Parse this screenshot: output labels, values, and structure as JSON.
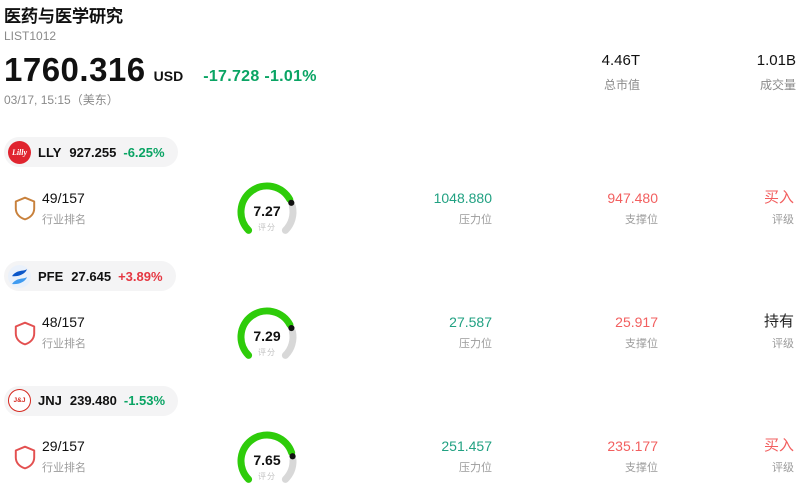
{
  "header": {
    "title": "医药与医学研究",
    "list_id": "LIST1012",
    "price": "1760.316",
    "currency": "USD",
    "change": "-17.728 -1.01%",
    "timestamp": "03/17, 15:15（美东）",
    "market_cap": {
      "value": "4.46T",
      "label": "总市值"
    },
    "volume": {
      "value": "1.01B",
      "label": "成交量"
    }
  },
  "labels": {
    "rank": "行业排名",
    "score": "评分",
    "pressure": "压力位",
    "support": "支撑位",
    "rating": "评级"
  },
  "colors": {
    "green": "#0aa464",
    "red": "#e53742",
    "pressure": "#21a182",
    "support": "#f25f5f",
    "gauge_green": "#2ecc0a",
    "gauge_gray": "#d8d8d8",
    "gauge_dot": "#111111"
  },
  "stocks": [
    {
      "ticker": "LLY",
      "price": "927.255",
      "change": "-6.25%",
      "change_color": "#0aa464",
      "logo_bg": "#e0242f",
      "logo_text": "Lilly",
      "shield_color": "#c8813c",
      "rank": "49/157",
      "score": "7.27",
      "pressure": "1048.880",
      "support": "947.480",
      "rating": "买入",
      "rating_color": "#f25f5f"
    },
    {
      "ticker": "PFE",
      "price": "27.645",
      "change": "+3.89%",
      "change_color": "#e53742",
      "logo_bg": "#eaf1fb",
      "shield_color": "#e35050",
      "rank": "48/157",
      "score": "7.29",
      "pressure": "27.587",
      "support": "25.917",
      "rating": "持有",
      "rating_color": "#222222"
    },
    {
      "ticker": "JNJ",
      "price": "239.480",
      "change": "-1.53%",
      "change_color": "#0aa464",
      "logo_bg": "#ffffff",
      "logo_text": "J&J",
      "logo_fg": "#d5281f",
      "shield_color": "#e35050",
      "rank": "29/157",
      "score": "7.65",
      "pressure": "251.457",
      "support": "235.177",
      "rating": "买入",
      "rating_color": "#f25f5f"
    }
  ]
}
